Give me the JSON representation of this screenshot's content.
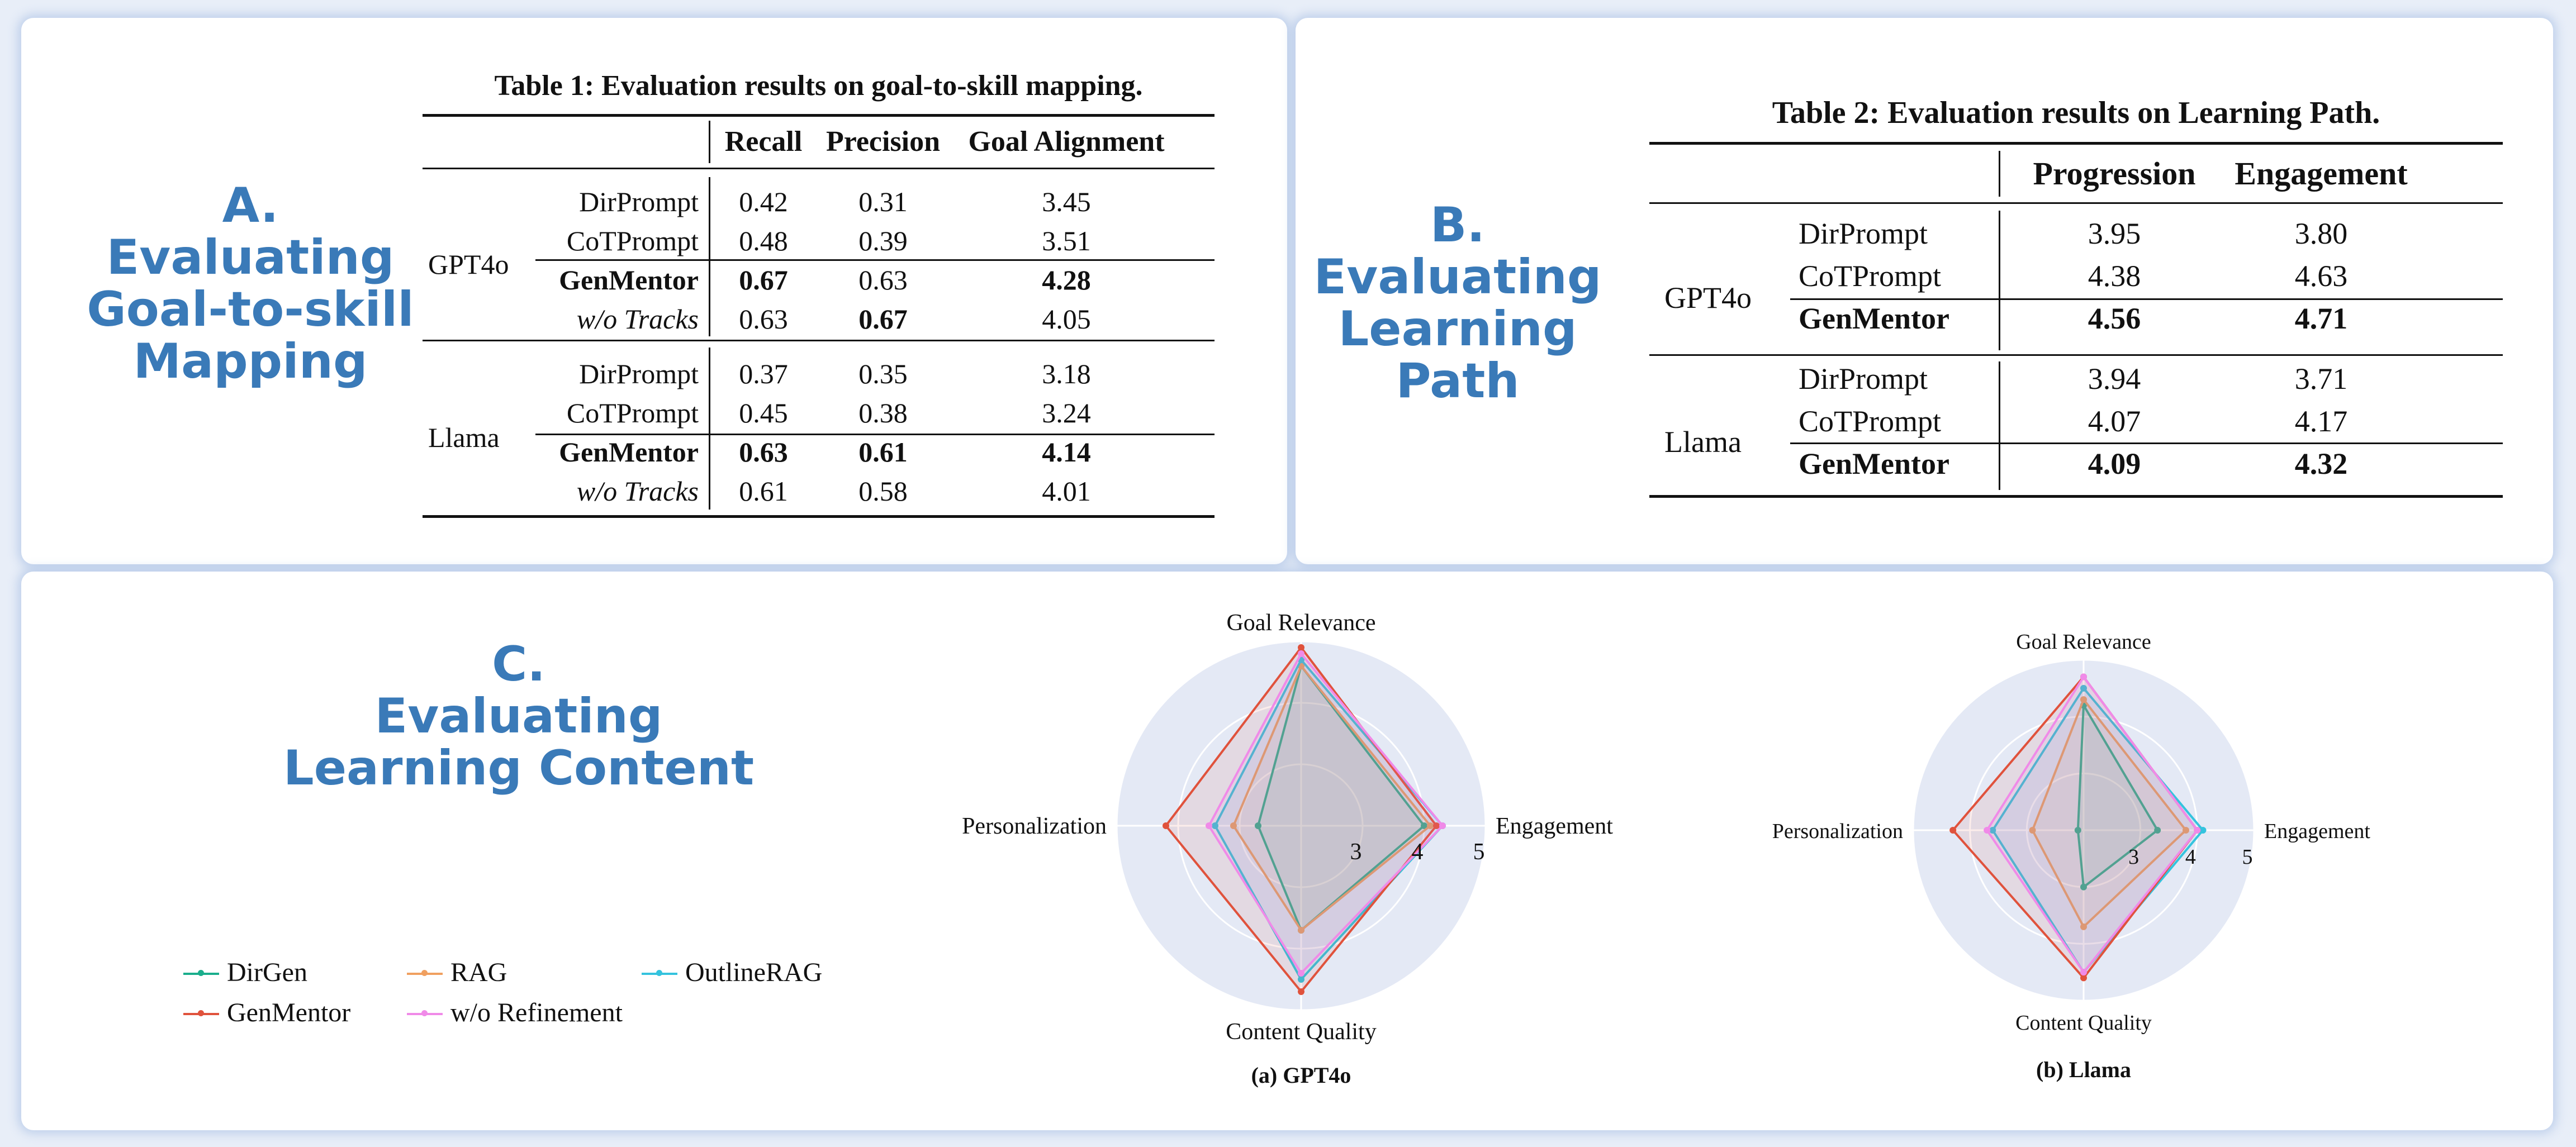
{
  "panel_a": {
    "heading": [
      "A.",
      "Evaluating",
      "Goal-to-skill",
      "Mapping"
    ],
    "table": {
      "caption": "Table 1: Evaluation results on goal-to-skill mapping.",
      "columns": [
        "Recall",
        "Precision",
        "Goal Alignment"
      ],
      "groups": [
        {
          "model": "GPT4o",
          "rows": [
            {
              "method": "DirPrompt",
              "values": [
                "0.42",
                "0.31",
                "3.45"
              ],
              "bold": [
                false,
                false,
                false
              ],
              "method_style": "normal"
            },
            {
              "method": "CoTPrompt",
              "values": [
                "0.48",
                "0.39",
                "3.51"
              ],
              "bold": [
                false,
                false,
                false
              ],
              "method_style": "normal"
            },
            {
              "method": "GenMentor",
              "values": [
                "0.67",
                "0.63",
                "4.28"
              ],
              "bold": [
                true,
                false,
                true
              ],
              "method_style": "bold"
            },
            {
              "method": "w/o Tracks",
              "values": [
                "0.63",
                "0.67",
                "4.05"
              ],
              "bold": [
                false,
                true,
                false
              ],
              "method_style": "italic"
            }
          ]
        },
        {
          "model": "Llama",
          "rows": [
            {
              "method": "DirPrompt",
              "values": [
                "0.37",
                "0.35",
                "3.18"
              ],
              "bold": [
                false,
                false,
                false
              ],
              "method_style": "normal"
            },
            {
              "method": "CoTPrompt",
              "values": [
                "0.45",
                "0.38",
                "3.24"
              ],
              "bold": [
                false,
                false,
                false
              ],
              "method_style": "normal"
            },
            {
              "method": "GenMentor",
              "values": [
                "0.63",
                "0.61",
                "4.14"
              ],
              "bold": [
                true,
                true,
                true
              ],
              "method_style": "bold"
            },
            {
              "method": "w/o Tracks",
              "values": [
                "0.61",
                "0.58",
                "4.01"
              ],
              "bold": [
                false,
                false,
                false
              ],
              "method_style": "italic"
            }
          ]
        }
      ]
    }
  },
  "panel_b": {
    "heading": [
      "B.",
      "Evaluating",
      "Learning",
      "Path"
    ],
    "table": {
      "caption": "Table 2: Evaluation results on Learning Path.",
      "columns": [
        "Progression",
        "Engagement"
      ],
      "groups": [
        {
          "model": "GPT4o",
          "rows": [
            {
              "method": "DirPrompt",
              "values": [
                "3.95",
                "3.80"
              ],
              "bold": false
            },
            {
              "method": "CoTPrompt",
              "values": [
                "4.38",
                "4.63"
              ],
              "bold": false
            },
            {
              "method": "GenMentor",
              "values": [
                "4.56",
                "4.71"
              ],
              "bold": true
            }
          ]
        },
        {
          "model": "Llama",
          "rows": [
            {
              "method": "DirPrompt",
              "values": [
                "3.94",
                "3.71"
              ],
              "bold": false
            },
            {
              "method": "CoTPrompt",
              "values": [
                "4.07",
                "4.17"
              ],
              "bold": false
            },
            {
              "method": "GenMentor",
              "values": [
                "4.09",
                "4.32"
              ],
              "bold": true
            }
          ]
        }
      ]
    }
  },
  "panel_c": {
    "heading": [
      "C.",
      "Evaluating",
      "Learning Content"
    ],
    "legend": [
      {
        "name": "DirGen",
        "color": "#1aae8c"
      },
      {
        "name": "RAG",
        "color": "#f0a060"
      },
      {
        "name": "OutlineRAG",
        "color": "#34c3de"
      },
      {
        "name": "GenMentor",
        "color": "#e0523c"
      },
      {
        "name": "w/o Refinement",
        "color": "#f08ae8"
      }
    ]
  },
  "chart_data": [
    {
      "type": "radar",
      "caption": "(a) GPT4o",
      "axes": [
        "Goal Relevance",
        "Engagement",
        "Content Quality",
        "Personalization"
      ],
      "radial_ticks": [
        "3",
        "4",
        "5"
      ],
      "rlim": [
        2,
        5
      ],
      "series": [
        {
          "name": "DirGen",
          "values": [
            4.6,
            4.0,
            3.7,
            2.7
          ]
        },
        {
          "name": "RAG",
          "values": [
            4.6,
            4.1,
            3.7,
            3.1
          ]
        },
        {
          "name": "OutlineRAG",
          "values": [
            4.7,
            4.3,
            4.5,
            3.4
          ]
        },
        {
          "name": "GenMentor",
          "values": [
            4.9,
            4.2,
            4.7,
            4.2
          ]
        },
        {
          "name": "w/o Refinement",
          "values": [
            4.8,
            4.3,
            4.4,
            3.5
          ]
        }
      ]
    },
    {
      "type": "radar",
      "caption": "(b) Llama",
      "axes": [
        "Goal Relevance",
        "Engagement",
        "Content Quality",
        "Personalization"
      ],
      "radial_ticks": [
        "3",
        "4",
        "5"
      ],
      "rlim": [
        2,
        5
      ],
      "series": [
        {
          "name": "DirGen",
          "values": [
            4.2,
            3.3,
            3.0,
            2.1
          ]
        },
        {
          "name": "RAG",
          "values": [
            4.3,
            3.8,
            3.7,
            2.9
          ]
        },
        {
          "name": "OutlineRAG",
          "values": [
            4.5,
            4.1,
            4.5,
            3.6
          ]
        },
        {
          "name": "GenMentor",
          "values": [
            4.7,
            4.0,
            4.6,
            4.3
          ]
        },
        {
          "name": "w/o Refinement",
          "values": [
            4.7,
            4.0,
            4.5,
            3.7
          ]
        }
      ]
    }
  ]
}
